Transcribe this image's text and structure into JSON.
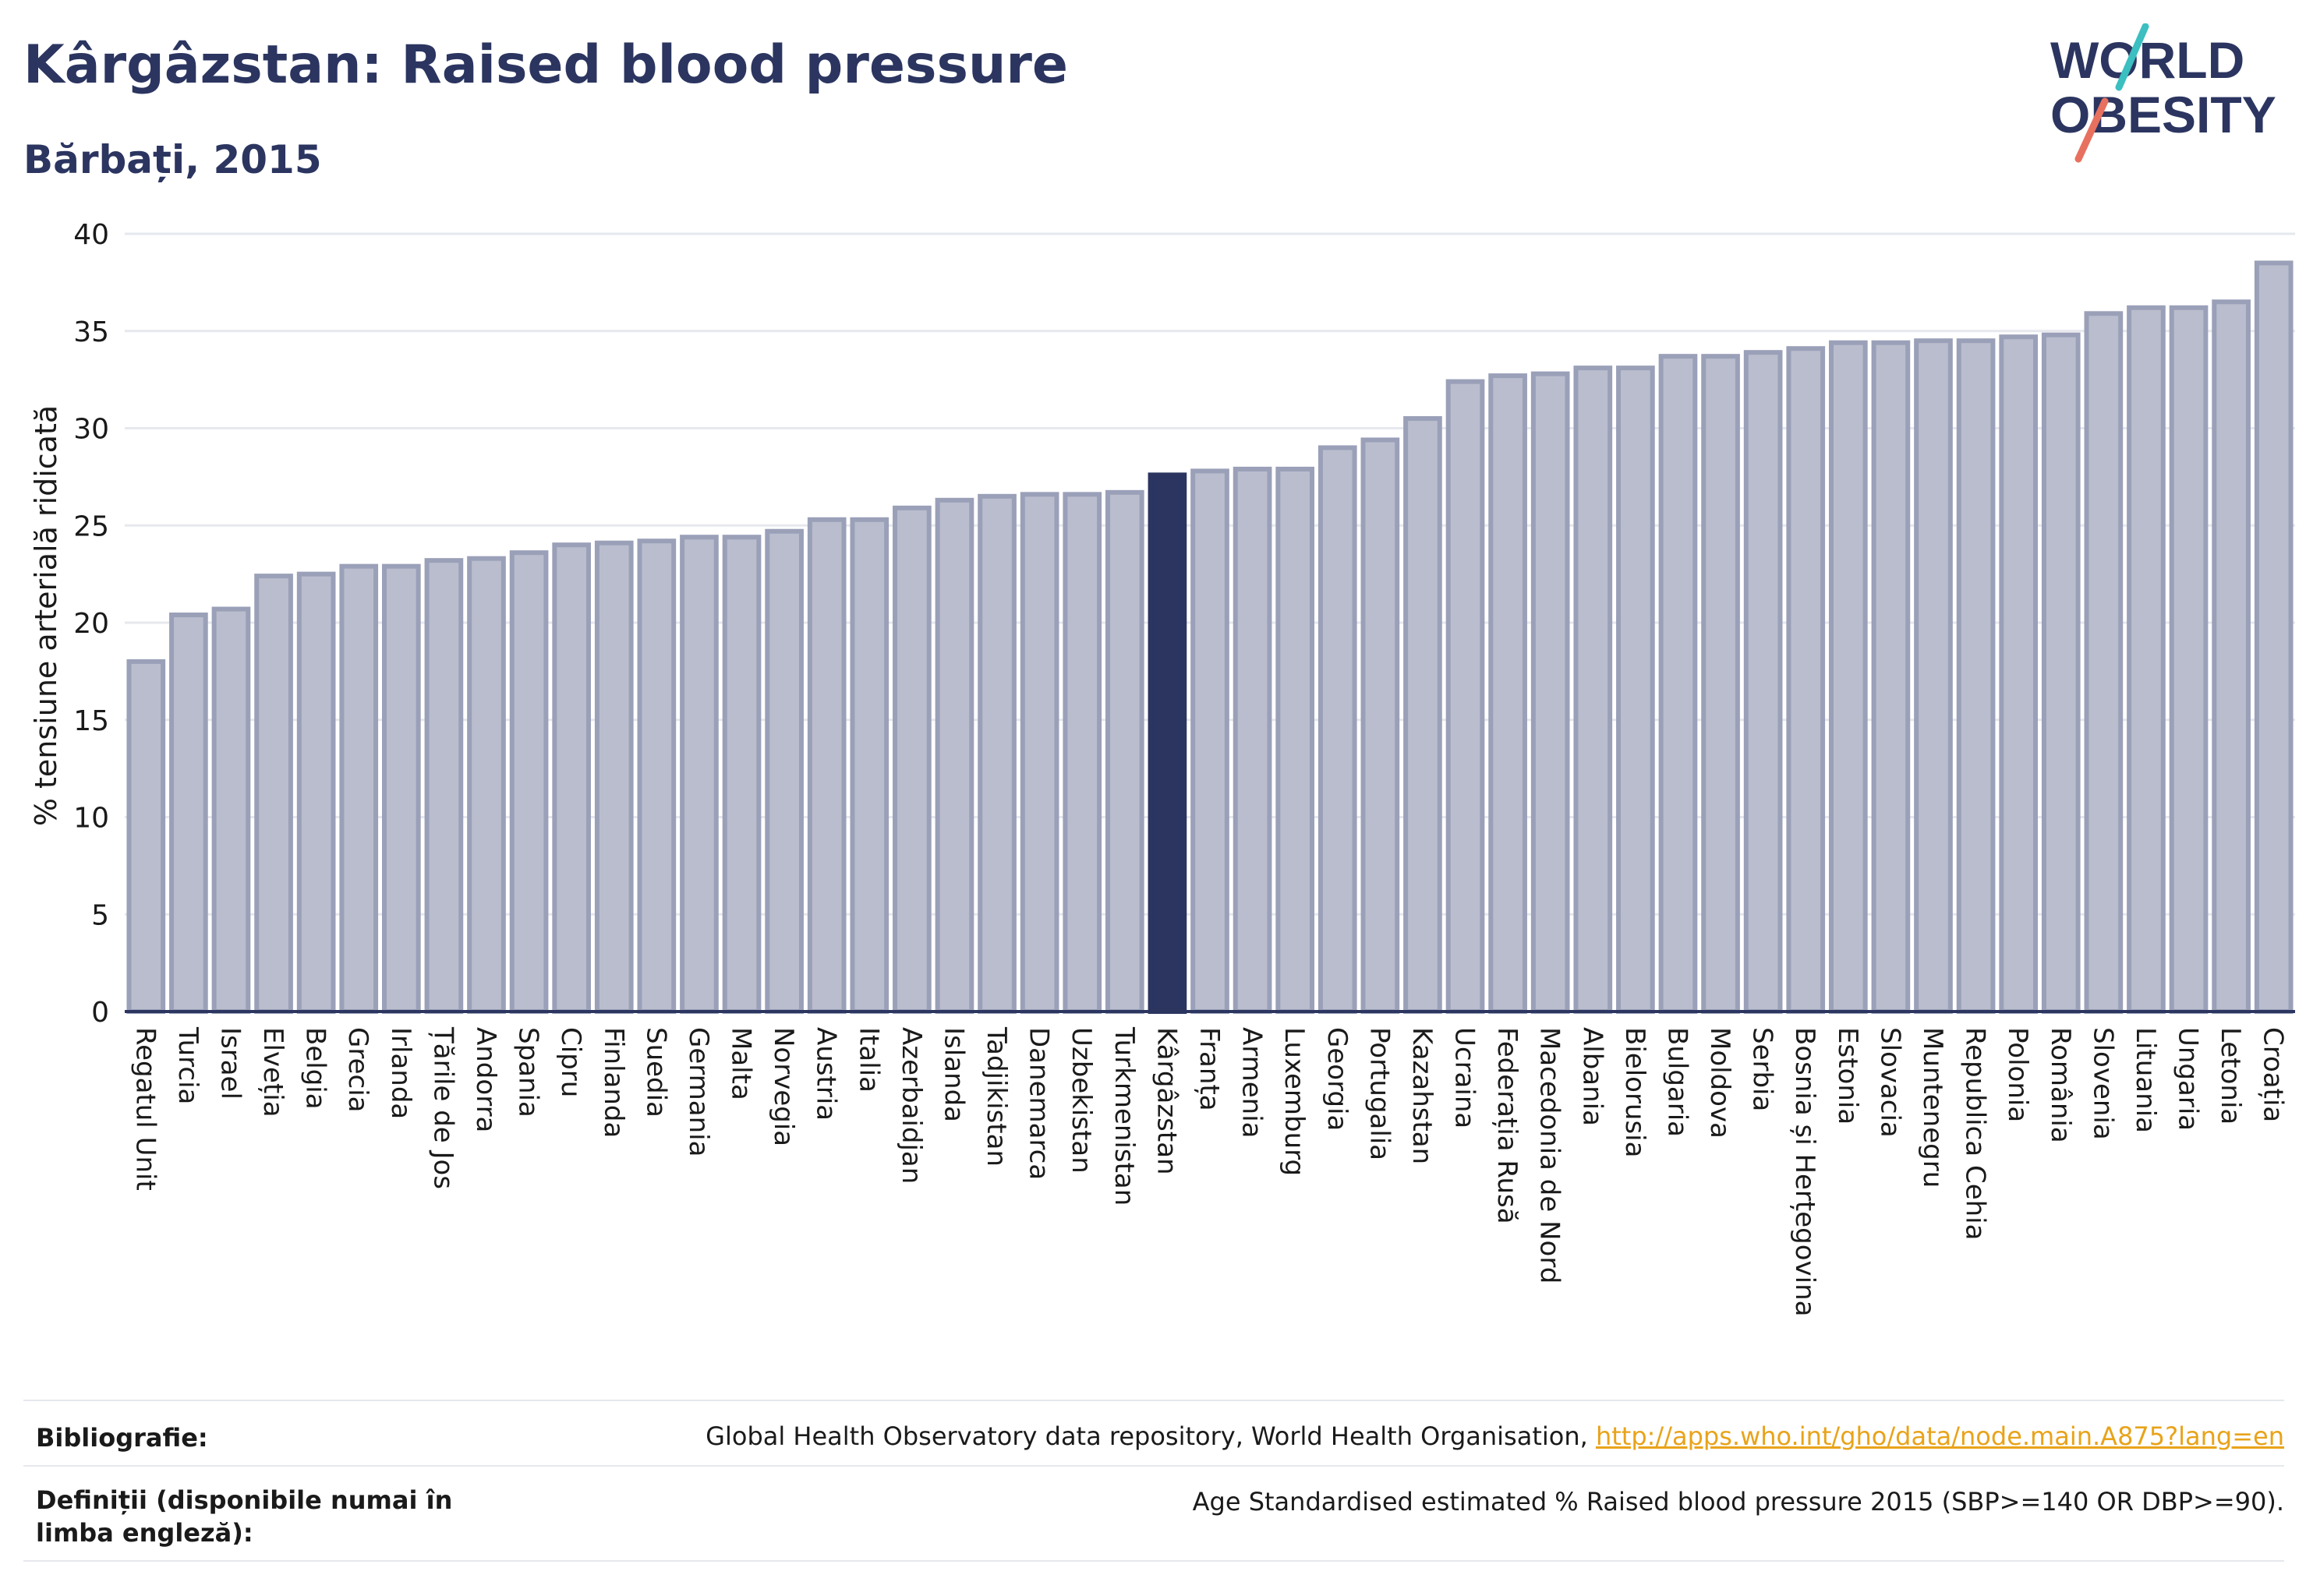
{
  "title": "Kârgâzstan: Raised blood pressure",
  "subtitle": "Bărbați, 2015",
  "logo": {
    "line1": "WORLD",
    "line2": "OBESITY"
  },
  "footer": {
    "bibliography_label": "Bibliografie:",
    "bibliography_text": "Global Health Observatory data repository, World Health Organisation, ",
    "bibliography_link": "http://apps.who.int/gho/data/node.main.A875?lang=en",
    "definition_label": "Definiții (disponibile numai în limba engleză):",
    "definition_text": "Age Standardised estimated % Raised blood pressure 2015 (SBP>=140 OR DBP>=90)."
  },
  "colors": {
    "bar": "#b9bdcd",
    "bar_stroke": "#9aa0b8",
    "highlight": "#2b3560",
    "axis": "#2b3560",
    "grid": "#e6e8ee",
    "logo_teal": "#3bbfc0",
    "logo_coral": "#e8705f"
  },
  "chart_data": {
    "type": "bar",
    "ylabel": "% tensiune arterială ridicată",
    "ylim": [
      0,
      40
    ],
    "yticks": [
      0,
      5,
      10,
      15,
      20,
      25,
      30,
      35,
      40
    ],
    "highlight": "Kârgâzstan",
    "grid": true,
    "categories": [
      "Regatul Unit",
      "Turcia",
      "Israel",
      "Elveția",
      "Belgia",
      "Grecia",
      "Irlanda",
      "Țările de Jos",
      "Andorra",
      "Spania",
      "Cipru",
      "Finlanda",
      "Suedia",
      "Germania",
      "Malta",
      "Norvegia",
      "Austria",
      "Italia",
      "Azerbaidjan",
      "Islanda",
      "Tadjikistan",
      "Danemarca",
      "Uzbekistan",
      "Turkmenistan",
      "Kârgâzstan",
      "Franța",
      "Armenia",
      "Luxemburg",
      "Georgia",
      "Portugalia",
      "Kazahstan",
      "Ucraina",
      "Federația Rusă",
      "Macedonia de Nord",
      "Albania",
      "Bielorusia",
      "Bulgaria",
      "Moldova",
      "Serbia",
      "Bosnia și Herțegovina",
      "Estonia",
      "Slovacia",
      "Muntenegru",
      "Republica Cehia",
      "Polonia",
      "România",
      "Slovenia",
      "Lituania",
      "Ungaria",
      "Letonia",
      "Croația"
    ],
    "values": [
      18.0,
      20.4,
      20.7,
      22.4,
      22.5,
      22.9,
      22.9,
      23.2,
      23.3,
      23.6,
      24.0,
      24.1,
      24.2,
      24.4,
      24.4,
      24.7,
      25.3,
      25.3,
      25.9,
      26.3,
      26.5,
      26.6,
      26.6,
      26.7,
      27.6,
      27.8,
      27.9,
      27.9,
      29.0,
      29.4,
      30.5,
      32.4,
      32.7,
      32.8,
      33.1,
      33.1,
      33.7,
      33.7,
      33.9,
      34.1,
      34.4,
      34.4,
      34.5,
      34.5,
      34.7,
      34.8,
      35.9,
      36.2,
      36.2,
      36.5,
      38.5
    ]
  }
}
